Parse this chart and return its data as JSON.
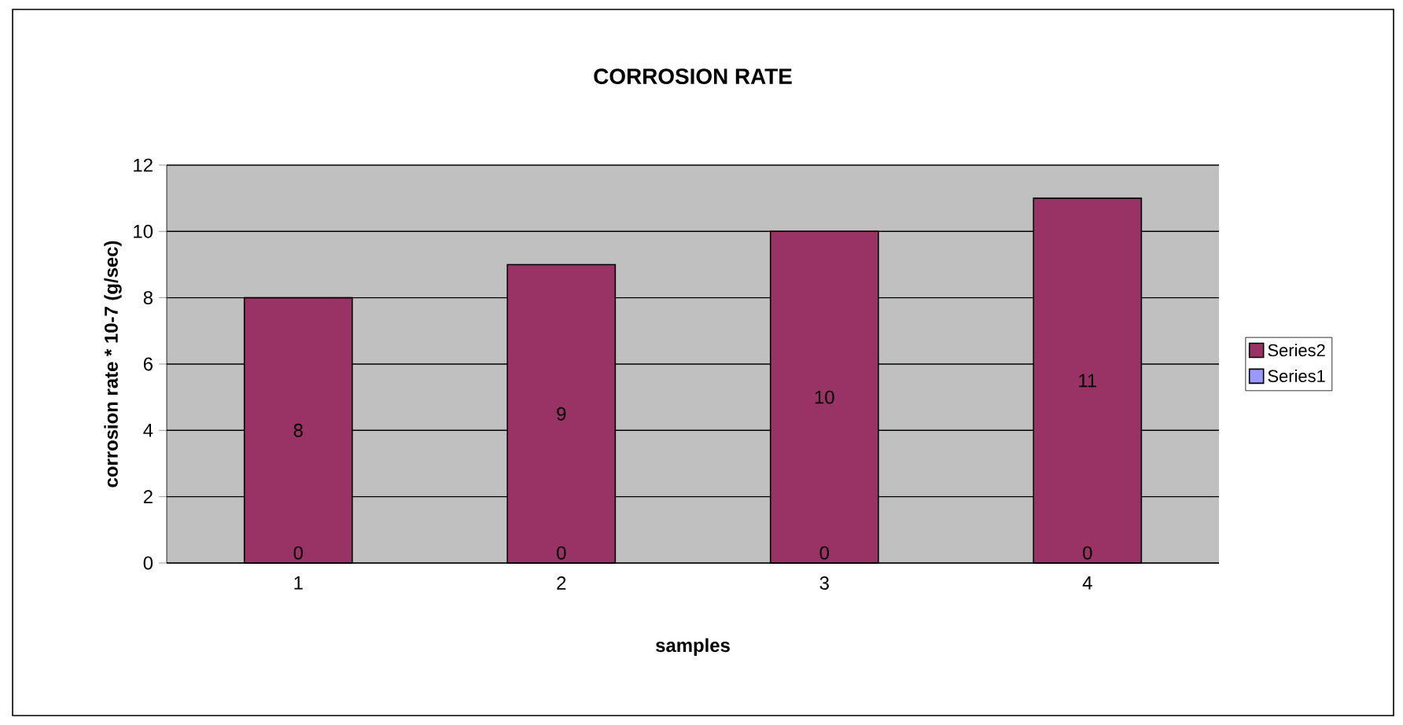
{
  "chart_data": {
    "type": "bar",
    "title": "CORROSION RATE",
    "xlabel": "samples",
    "ylabel": "corrosion rate * 10-7 (g/sec)",
    "categories": [
      "1",
      "2",
      "3",
      "4"
    ],
    "series": [
      {
        "name": "Series1",
        "color": "#9999ff",
        "values": [
          0,
          0,
          0,
          0
        ]
      },
      {
        "name": "Series2",
        "color": "#993366",
        "values": [
          8,
          9,
          10,
          11
        ],
        "value_labels": [
          "8",
          "9",
          "10",
          "11"
        ]
      }
    ],
    "annotations": [
      {
        "text": "0",
        "x": "1",
        "y": 0
      },
      {
        "text": "0",
        "x": "2",
        "y": 0
      },
      {
        "text": "0",
        "x": "3",
        "y": 0
      },
      {
        "text": "0",
        "x": "4",
        "y": 0
      }
    ],
    "stacked": true,
    "ylim": [
      0,
      12
    ],
    "yticks": [
      0,
      2,
      4,
      6,
      8,
      10,
      12
    ],
    "grid": "y",
    "legend": "right"
  }
}
